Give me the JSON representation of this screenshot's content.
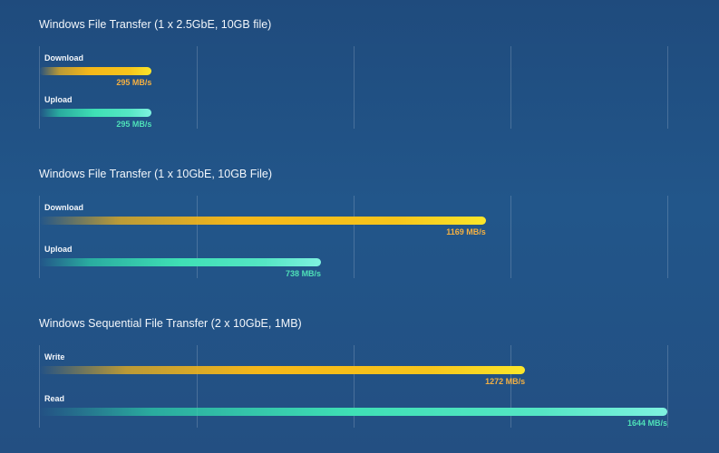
{
  "colors": {
    "download_value": "#f4b042",
    "upload_value": "#4fe0b8"
  },
  "chart_data": [
    {
      "type": "bar",
      "title": "Windows File Transfer (1 x 2.5GbE, 10GB file)",
      "xlim": [
        0,
        1644
      ],
      "grid": true,
      "series": [
        {
          "name": "Download",
          "value": 295,
          "value_label": "295 MB/s",
          "style": "gold"
        },
        {
          "name": "Upload",
          "value": 295,
          "value_label": "295 MB/s",
          "style": "teal"
        }
      ]
    },
    {
      "type": "bar",
      "title": "Windows File Transfer (1 x 10GbE, 10GB File)",
      "xlim": [
        0,
        1644
      ],
      "grid": true,
      "series": [
        {
          "name": "Download",
          "value": 1169,
          "value_label": "1169 MB/s",
          "style": "gold"
        },
        {
          "name": "Upload",
          "value": 738,
          "value_label": "738 MB/s",
          "style": "teal"
        }
      ]
    },
    {
      "type": "bar",
      "title": "Windows Sequential File Transfer (2 x 10GbE, 1MB)",
      "xlim": [
        0,
        1644
      ],
      "grid": true,
      "series": [
        {
          "name": "Write",
          "value": 1272,
          "value_label": "1272 MB/s",
          "style": "gold"
        },
        {
          "name": "Read",
          "value": 1644,
          "value_label": "1644 MB/s",
          "style": "teal"
        }
      ]
    }
  ]
}
